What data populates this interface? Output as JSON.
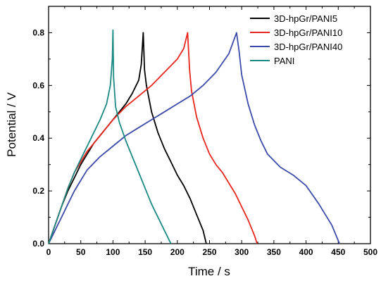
{
  "chart_data": {
    "type": "line",
    "xlabel": "Time / s",
    "ylabel": "Potential / V",
    "xlim": [
      0,
      500
    ],
    "ylim": [
      0,
      0.9
    ],
    "xticks": [
      "0",
      "50",
      "100",
      "150",
      "200",
      "250",
      "300",
      "350",
      "400",
      "450",
      "500"
    ],
    "yticks": [
      "0.0",
      "0.2",
      "0.4",
      "0.6",
      "0.8"
    ],
    "grid": false,
    "legend_position": "top-right",
    "series": [
      {
        "name": "3D-hpGr/PANI5",
        "color": "#000000",
        "points": [
          [
            0,
            0
          ],
          [
            10,
            0.07
          ],
          [
            20,
            0.14
          ],
          [
            30,
            0.2
          ],
          [
            40,
            0.25
          ],
          [
            50,
            0.3
          ],
          [
            60,
            0.34
          ],
          [
            70,
            0.38
          ],
          [
            80,
            0.41
          ],
          [
            90,
            0.44
          ],
          [
            100,
            0.47
          ],
          [
            110,
            0.5
          ],
          [
            120,
            0.53
          ],
          [
            130,
            0.57
          ],
          [
            140,
            0.62
          ],
          [
            144,
            0.68
          ],
          [
            147,
            0.8
          ],
          [
            149,
            0.66
          ],
          [
            152,
            0.6
          ],
          [
            160,
            0.5
          ],
          [
            170,
            0.42
          ],
          [
            180,
            0.36
          ],
          [
            190,
            0.31
          ],
          [
            200,
            0.26
          ],
          [
            210,
            0.22
          ],
          [
            220,
            0.17
          ],
          [
            230,
            0.11
          ],
          [
            240,
            0.05
          ],
          [
            245,
            0.0
          ]
        ]
      },
      {
        "name": "3D-hpGr/PANI10",
        "color": "#e8261e",
        "points": [
          [
            0,
            0
          ],
          [
            10,
            0.07
          ],
          [
            20,
            0.14
          ],
          [
            30,
            0.21
          ],
          [
            40,
            0.27
          ],
          [
            50,
            0.31
          ],
          [
            60,
            0.35
          ],
          [
            70,
            0.38
          ],
          [
            80,
            0.41
          ],
          [
            90,
            0.44
          ],
          [
            100,
            0.47
          ],
          [
            120,
            0.52
          ],
          [
            140,
            0.56
          ],
          [
            160,
            0.6
          ],
          [
            180,
            0.65
          ],
          [
            200,
            0.7
          ],
          [
            210,
            0.74
          ],
          [
            216,
            0.8
          ],
          [
            219,
            0.66
          ],
          [
            222,
            0.58
          ],
          [
            230,
            0.48
          ],
          [
            240,
            0.4
          ],
          [
            250,
            0.34
          ],
          [
            260,
            0.3
          ],
          [
            270,
            0.27
          ],
          [
            280,
            0.23
          ],
          [
            290,
            0.19
          ],
          [
            300,
            0.14
          ],
          [
            310,
            0.09
          ],
          [
            320,
            0.03
          ],
          [
            324,
            0.0
          ]
        ]
      },
      {
        "name": "3D-hpGr/PANI40",
        "color": "#3c4ba8",
        "points": [
          [
            0,
            0
          ],
          [
            10,
            0.05
          ],
          [
            20,
            0.1
          ],
          [
            30,
            0.15
          ],
          [
            40,
            0.2
          ],
          [
            50,
            0.24
          ],
          [
            60,
            0.28
          ],
          [
            80,
            0.33
          ],
          [
            100,
            0.37
          ],
          [
            120,
            0.41
          ],
          [
            140,
            0.44
          ],
          [
            160,
            0.47
          ],
          [
            180,
            0.5
          ],
          [
            200,
            0.53
          ],
          [
            220,
            0.56
          ],
          [
            240,
            0.6
          ],
          [
            260,
            0.65
          ],
          [
            280,
            0.72
          ],
          [
            292,
            0.8
          ],
          [
            296,
            0.73
          ],
          [
            300,
            0.64
          ],
          [
            310,
            0.53
          ],
          [
            320,
            0.45
          ],
          [
            330,
            0.39
          ],
          [
            340,
            0.34
          ],
          [
            360,
            0.29
          ],
          [
            380,
            0.26
          ],
          [
            400,
            0.22
          ],
          [
            420,
            0.15
          ],
          [
            440,
            0.07
          ],
          [
            452,
            0.0
          ]
        ]
      },
      {
        "name": "PANI",
        "color": "#1b8a83",
        "points": [
          [
            0,
            0
          ],
          [
            10,
            0.07
          ],
          [
            20,
            0.14
          ],
          [
            30,
            0.21
          ],
          [
            40,
            0.27
          ],
          [
            50,
            0.32
          ],
          [
            60,
            0.37
          ],
          [
            70,
            0.42
          ],
          [
            80,
            0.47
          ],
          [
            90,
            0.53
          ],
          [
            96,
            0.6
          ],
          [
            99,
            0.7
          ],
          [
            100,
            0.81
          ],
          [
            101,
            0.63
          ],
          [
            104,
            0.52
          ],
          [
            110,
            0.46
          ],
          [
            120,
            0.39
          ],
          [
            130,
            0.33
          ],
          [
            140,
            0.27
          ],
          [
            150,
            0.21
          ],
          [
            160,
            0.15
          ],
          [
            170,
            0.1
          ],
          [
            180,
            0.05
          ],
          [
            190,
            0.0
          ]
        ]
      }
    ]
  }
}
